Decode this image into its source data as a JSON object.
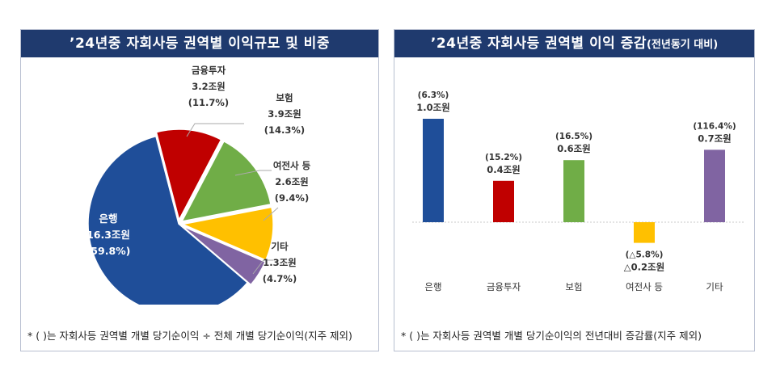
{
  "chart_data": [
    {
      "type": "pie",
      "title": "’24년중 자회사등 권역별 이익규모 및 비중",
      "footnote": "* ( )는 자회사등 권역별 개별 당기순이익 ÷ 전체 개별 당기순이익(지주 제외)",
      "slices": [
        {
          "name": "은행",
          "amount": "16.3조원",
          "value": 16.3,
          "share": "(59.8%)",
          "color": "#1f4e99"
        },
        {
          "name": "금융투자",
          "amount": "3.2조원",
          "value": 3.2,
          "share": "(11.7%)",
          "color": "#c00000"
        },
        {
          "name": "보험",
          "amount": "3.9조원",
          "value": 3.9,
          "share": "(14.3%)",
          "color": "#70ad47"
        },
        {
          "name": "여전사 등",
          "amount": "2.6조원",
          "value": 2.6,
          "share": "(9.4%)",
          "color": "#ffc000"
        },
        {
          "name": "기타",
          "amount": "1.3조원",
          "value": 1.3,
          "share": "(4.7%)",
          "color": "#8064a2"
        }
      ]
    },
    {
      "type": "bar",
      "title": "’24년중 자회사등 권역별 이익 증감",
      "title_sub": "(전년동기 대비)",
      "footnote": "* ( )는 자회사등 권역별 개별 당기순이익의 전년대비 증감률(지주 제외)",
      "categories": [
        "은행",
        "금융투자",
        "보험",
        "여전사 등",
        "기타"
      ],
      "values": [
        1.0,
        0.4,
        0.6,
        -0.2,
        0.7
      ],
      "value_labels": [
        "1.0조원",
        "0.4조원",
        "0.6조원",
        "△0.2조원",
        "0.7조원"
      ],
      "rate_labels": [
        "(6.3%)",
        "(15.2%)",
        "(16.5%)",
        "(△5.8%)",
        "(116.4%)"
      ],
      "colors": [
        "#1f4e99",
        "#c00000",
        "#70ad47",
        "#ffc000",
        "#8064a2"
      ]
    }
  ]
}
